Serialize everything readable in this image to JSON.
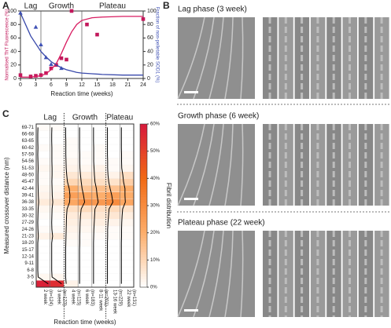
{
  "panel_a": {
    "letter": "A",
    "xlabel": "Reaction time (weeks)",
    "ylabel": "Normalised ThT Fluorescence (%)",
    "y2label": "Fraction of non-pelletable SOD1 (%)",
    "xlim": [
      0,
      24
    ],
    "xticks": [
      0,
      3,
      6,
      9,
      12,
      15,
      18,
      21,
      24
    ],
    "ylim": [
      0,
      100
    ],
    "yticks": [
      0,
      20,
      40,
      60,
      80,
      100
    ],
    "y2lim": [
      0,
      100
    ],
    "y2ticks": [
      0,
      20,
      40,
      60,
      80,
      100
    ],
    "regions": [
      {
        "label": "Lag",
        "from": 0,
        "to": 4
      },
      {
        "label": "Growth",
        "from": 4,
        "to": 12
      },
      {
        "label": "Plateau",
        "from": 12,
        "to": 24
      }
    ],
    "series": [
      {
        "type": "scatter",
        "marker": "square",
        "color": "#c2185b",
        "x": [
          0,
          2,
          3,
          4,
          5,
          6,
          7,
          8,
          9,
          10,
          13,
          15,
          24
        ],
        "values": [
          5,
          3,
          4,
          5,
          8,
          15,
          20,
          30,
          28,
          100,
          80,
          65,
          88
        ]
      },
      {
        "type": "scatter",
        "marker": "triangle",
        "color": "#3f51b5",
        "axis": "y2",
        "x": [
          0,
          3,
          4,
          5,
          6,
          8
        ],
        "values": [
          97,
          76,
          50,
          31,
          21,
          15
        ]
      },
      {
        "type": "line",
        "color": "#d81b60",
        "x": [
          0,
          2,
          4,
          5,
          6,
          7,
          8,
          9,
          10,
          11,
          12,
          14,
          16,
          20,
          24
        ],
        "values": [
          2,
          2,
          4,
          7,
          13,
          22,
          37,
          54,
          69,
          80,
          86,
          90,
          91,
          92,
          92
        ]
      },
      {
        "type": "line",
        "color": "#3949ab",
        "axis": "y2",
        "x": [
          0,
          2,
          4,
          5,
          6,
          7,
          8,
          9,
          10,
          11,
          12,
          14,
          16,
          20,
          24
        ],
        "values": [
          97,
          63,
          40,
          32,
          25,
          20,
          16,
          13,
          11,
          9,
          8,
          7,
          6,
          5,
          5
        ]
      }
    ]
  },
  "panel_b": {
    "letter": "B",
    "rows": [
      {
        "title": "Lag phase (3 week)"
      },
      {
        "title": "Growth phase (6 week)"
      },
      {
        "title": "Plateau phase (22 week)"
      }
    ]
  },
  "panel_c": {
    "letter": "C",
    "ylabel": "Measured crossover distance (nm)",
    "xlabel": "Reaction time (weeks)",
    "colorbar_label": "Fibril distribution",
    "categories": [
      "0",
      "3-5",
      "6-8",
      "9-11",
      "12-14",
      "15-17",
      "18-20",
      "21-23",
      "24-26",
      "27-29",
      "30-32",
      "33-35",
      "36-38",
      "39-41",
      "42-44",
      "45-47",
      "48-50",
      "51-53",
      "54-56",
      "57-59",
      "60-62",
      "63-65",
      "66-68",
      "69-71"
    ],
    "clim": [
      0,
      60
    ],
    "cticks": [
      {
        "value": 0,
        "label": "0%"
      },
      {
        "value": 10,
        "label": "10%"
      },
      {
        "value": 20,
        "label": "20%"
      },
      {
        "value": 30,
        "label": "30%"
      },
      {
        "value": 40,
        "label": "40%"
      },
      {
        "value": 50,
        "label": "50%"
      },
      {
        "value": 60,
        "label": "60%"
      }
    ],
    "groups": [
      {
        "label": "Lag",
        "columns": [
          {
            "name": "2 week",
            "n": "(n=124)",
            "values": [
              58,
              2,
              0,
              0,
              0,
              0,
              0,
              3,
              1,
              0,
              1,
              2,
              5,
              3,
              2,
              1,
              1,
              2,
              1,
              0,
              1,
              0,
              0,
              1
            ]
          },
          {
            "name": "3 week",
            "n": "(n=123)",
            "values": [
              55,
              2,
              0,
              0,
              0,
              0,
              0,
              5,
              1,
              0,
              1,
              2,
              6,
              3,
              2,
              1,
              2,
              2,
              1,
              1,
              1,
              0,
              0,
              1
            ]
          }
        ]
      },
      {
        "label": "Growth",
        "columns": [
          {
            "name": "4 week",
            "n": "(n=115)",
            "values": [
              3,
              0,
              0,
              0,
              0,
              0,
              1,
              2,
              3,
              4,
              5,
              8,
              22,
              24,
              20,
              10,
              6,
              3,
              2,
              1,
              1,
              1,
              0,
              0
            ]
          },
          {
            "name": "6 week",
            "n": "(n=183)",
            "values": [
              0,
              0,
              0,
              0,
              0,
              0,
              1,
              1,
              2,
              3,
              5,
              9,
              28,
              22,
              14,
              9,
              5,
              2,
              1,
              1,
              0,
              0,
              0,
              0
            ]
          },
          {
            "name": "8-11 week",
            "n": "(n=201)",
            "values": [
              0,
              0,
              0,
              0,
              0,
              0,
              0,
              1,
              2,
              4,
              6,
              8,
              26,
              20,
              16,
              8,
              5,
              3,
              1,
              1,
              1,
              0,
              0,
              0
            ]
          }
        ]
      },
      {
        "label": "Plateau",
        "columns": [
          {
            "name": "13-16 week",
            "n": "(n=229)",
            "values": [
              0,
              0,
              0,
              0,
              0,
              0,
              0,
              1,
              1,
              3,
              6,
              9,
              30,
              24,
              15,
              7,
              3,
              1,
              1,
              0,
              0,
              0,
              0,
              0
            ]
          },
          {
            "name": "22 week",
            "n": "(n=131)",
            "values": [
              0,
              0,
              0,
              0,
              0,
              0,
              0,
              1,
              1,
              2,
              4,
              7,
              22,
              20,
              20,
              12,
              8,
              2,
              1,
              1,
              0,
              0,
              0,
              0
            ]
          }
        ]
      }
    ]
  }
}
